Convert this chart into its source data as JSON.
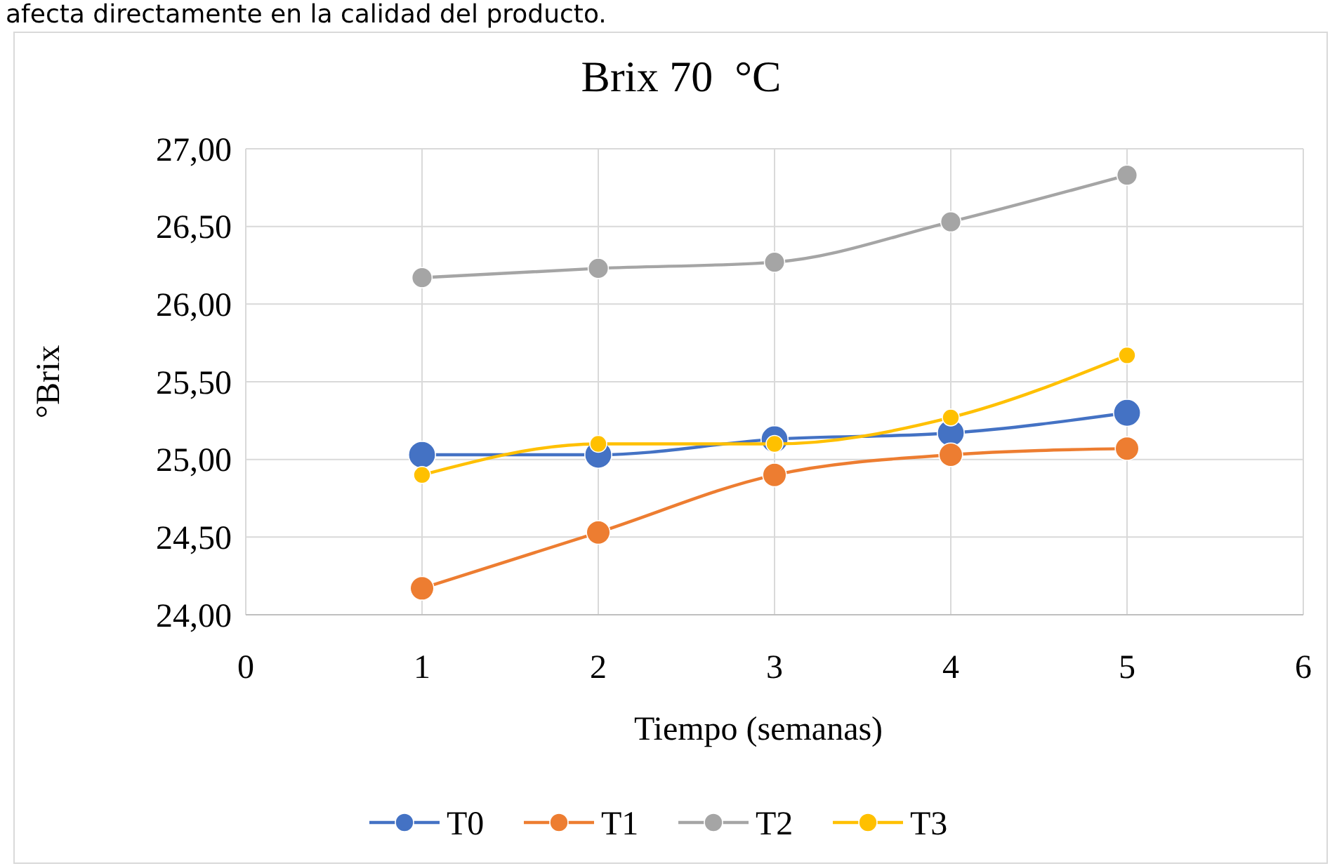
{
  "chart_data": {
    "type": "line",
    "title": "Brix 70  °C",
    "xlabel": "Tiempo (semanas)",
    "ylabel": "°Brix",
    "annotations": [
      "afecta directamente en la calidad del producto."
    ],
    "x": [
      1,
      2,
      3,
      4,
      5
    ],
    "series": [
      {
        "name": "T0",
        "color": "#4472c4",
        "values": [
          25.03,
          25.03,
          25.13,
          25.17,
          25.3
        ]
      },
      {
        "name": "T1",
        "color": "#ed7d31",
        "values": [
          24.17,
          24.53,
          24.9,
          25.03,
          25.07
        ]
      },
      {
        "name": "T2",
        "color": "#a5a5a5",
        "values": [
          26.17,
          26.23,
          26.27,
          26.53,
          26.83
        ]
      },
      {
        "name": "T3",
        "color": "#ffc000",
        "values": [
          24.9,
          25.1,
          25.1,
          25.27,
          25.67
        ]
      }
    ],
    "xlim": [
      0,
      6
    ],
    "xticks": [
      0,
      1,
      2,
      3,
      4,
      5,
      6
    ],
    "ylim": [
      24,
      27
    ],
    "yticks": [
      {
        "value": 24,
        "label": "24,00"
      },
      {
        "value": 24.5,
        "label": "24,50"
      },
      {
        "value": 25,
        "label": "25,00"
      },
      {
        "value": 25.5,
        "label": "25,50"
      },
      {
        "value": 26,
        "label": "26,00"
      },
      {
        "value": 26.5,
        "label": "26,50"
      },
      {
        "value": 27,
        "label": "27,00"
      }
    ],
    "grid": true,
    "legend": "bottom",
    "marker": "circle",
    "line_style": "solid"
  }
}
